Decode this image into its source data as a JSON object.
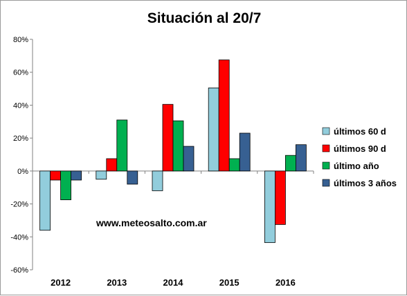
{
  "chart_data": {
    "type": "bar",
    "title": "Situación al 20/7",
    "categories": [
      "2012",
      "2013",
      "2014",
      "2015",
      "2016"
    ],
    "ylim": [
      -60,
      80
    ],
    "yticks": [
      80,
      60,
      40,
      20,
      0,
      -20,
      -40,
      -60
    ],
    "ytick_labels": [
      "80%",
      "60%",
      "40%",
      "20%",
      "0%",
      "-20%",
      "-40%",
      "-60%"
    ],
    "series": [
      {
        "name": "últimos 60 d",
        "color": "#92cddc",
        "values": [
          -36,
          -5,
          -12,
          50.5,
          -43.5
        ]
      },
      {
        "name": "últimos 90 d",
        "color": "#ff0000",
        "values": [
          -5.5,
          7.5,
          40.5,
          67.5,
          -32.5
        ]
      },
      {
        "name": "último año",
        "color": "#00b050",
        "values": [
          -17.5,
          31,
          30.5,
          7.5,
          9.5
        ]
      },
      {
        "name": "últimos 3 años",
        "color": "#376092",
        "values": [
          -5.5,
          -8,
          15,
          23,
          16
        ]
      }
    ],
    "legend_position": "right",
    "grid": false,
    "annotation": "www.meteosalto.com.ar"
  }
}
